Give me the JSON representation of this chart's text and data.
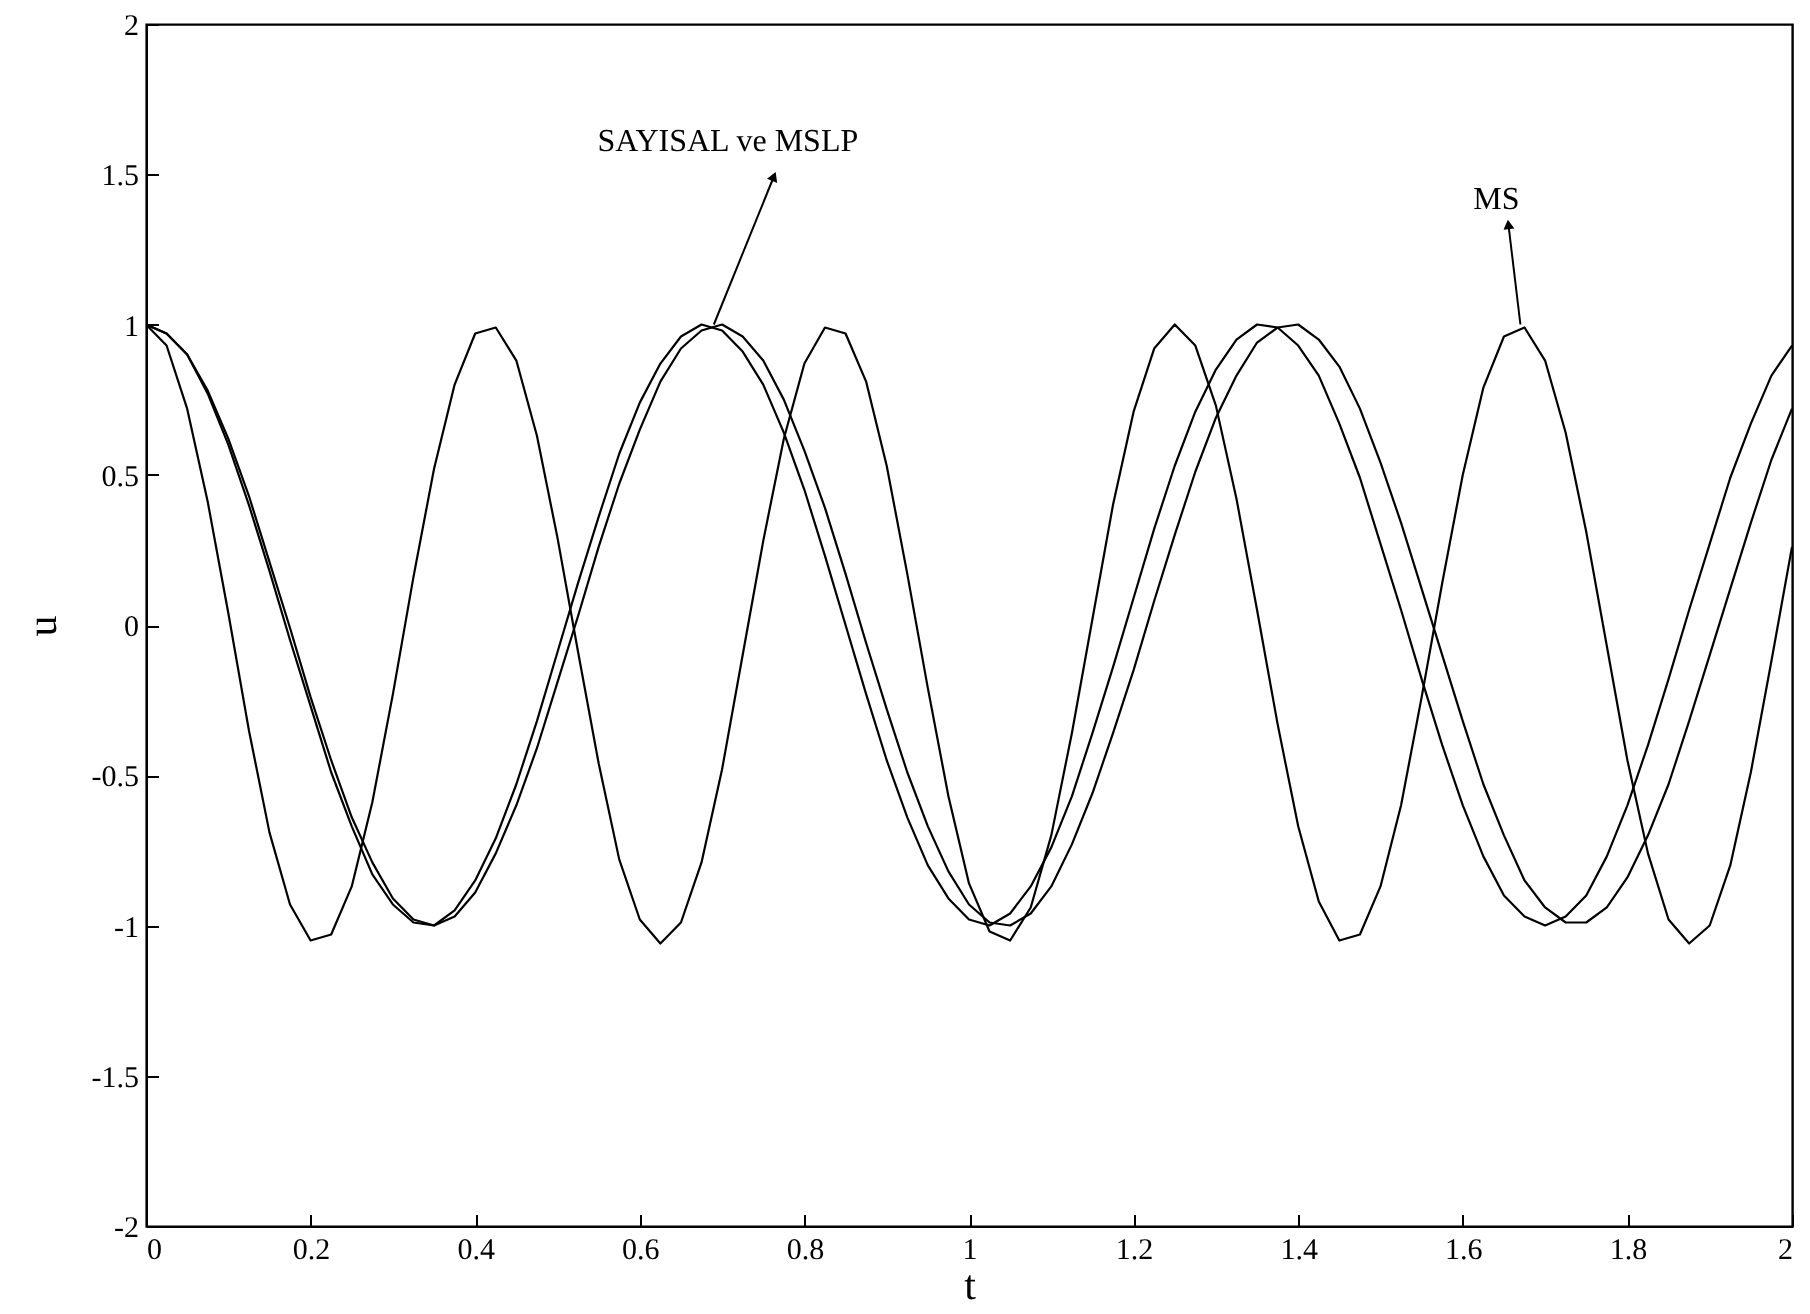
{
  "chart_data": {
    "type": "line",
    "xlabel": "t",
    "ylabel": "u",
    "xlim": [
      0,
      2
    ],
    "ylim": [
      -2,
      2
    ],
    "xticks": [
      0,
      0.2,
      0.4,
      0.6,
      0.8,
      1,
      1.2,
      1.4,
      1.6,
      1.8,
      2
    ],
    "yticks": [
      -2,
      -1.5,
      -1,
      -0.5,
      0,
      0.5,
      1,
      1.5,
      2
    ],
    "grid": false,
    "annotations": [
      {
        "text": "SAYISAL ve MSLP",
        "x": 0.69,
        "y": 1.0
      },
      {
        "text": "MS",
        "x": 1.67,
        "y": 1.0
      }
    ],
    "x": [
      0,
      0.025,
      0.05,
      0.075,
      0.1,
      0.125,
      0.15,
      0.175,
      0.2,
      0.225,
      0.25,
      0.275,
      0.3,
      0.325,
      0.35,
      0.375,
      0.4,
      0.425,
      0.45,
      0.475,
      0.5,
      0.525,
      0.55,
      0.575,
      0.6,
      0.625,
      0.65,
      0.675,
      0.7,
      0.725,
      0.75,
      0.775,
      0.8,
      0.825,
      0.85,
      0.875,
      0.9,
      0.925,
      0.95,
      0.975,
      1,
      1.025,
      1.05,
      1.075,
      1.1,
      1.125,
      1.15,
      1.175,
      1.2,
      1.225,
      1.25,
      1.275,
      1.3,
      1.325,
      1.35,
      1.375,
      1.4,
      1.425,
      1.45,
      1.475,
      1.5,
      1.525,
      1.55,
      1.575,
      1.6,
      1.625,
      1.65,
      1.675,
      1.7,
      1.725,
      1.75,
      1.775,
      1.8,
      1.825,
      1.85,
      1.875,
      1.9,
      1.925,
      1.95,
      1.975,
      2
    ],
    "series": [
      {
        "color": "#000000",
        "values": [
          1,
          0.93,
          0.72,
          0.41,
          0.04,
          -0.35,
          -0.69,
          -0.93,
          -1.05,
          -1.03,
          -0.87,
          -0.59,
          -0.23,
          0.16,
          0.52,
          0.8,
          0.97,
          0.99,
          0.88,
          0.63,
          0.29,
          -0.09,
          -0.46,
          -0.78,
          -0.98,
          -1.06,
          -0.99,
          -0.79,
          -0.48,
          -0.1,
          0.28,
          0.62,
          0.87,
          0.99,
          0.97,
          0.81,
          0.53,
          0.17,
          -0.21,
          -0.57,
          -0.86,
          -1.02,
          -1.05,
          -0.94,
          -0.7,
          -0.36,
          0.02,
          0.4,
          0.71,
          0.92,
          1,
          0.93,
          0.73,
          0.42,
          0.05,
          -0.33,
          -0.67,
          -0.92,
          -1.05,
          -1.03,
          -0.87,
          -0.6,
          -0.24,
          0.14,
          0.5,
          0.79,
          0.96,
          0.99,
          0.88,
          0.64,
          0.31,
          -0.07,
          -0.45,
          -0.76,
          -0.98,
          -1.06,
          -1,
          -0.8,
          -0.49,
          -0.12,
          0.26
        ]
      },
      {
        "color": "#000000",
        "values": [
          1,
          0.97,
          0.9,
          0.77,
          0.6,
          0.4,
          0.18,
          -0.05,
          -0.27,
          -0.49,
          -0.67,
          -0.83,
          -0.93,
          -0.99,
          -1,
          -0.95,
          -0.85,
          -0.71,
          -0.53,
          -0.32,
          -0.09,
          0.14,
          0.36,
          0.57,
          0.74,
          0.87,
          0.96,
          1,
          0.98,
          0.91,
          0.8,
          0.64,
          0.45,
          0.23,
          0,
          -0.23,
          -0.45,
          -0.64,
          -0.8,
          -0.91,
          -0.98,
          -1,
          -0.96,
          -0.87,
          -0.74,
          -0.57,
          -0.36,
          -0.14,
          0.09,
          0.32,
          0.53,
          0.71,
          0.85,
          0.95,
          1,
          0.99,
          0.93,
          0.83,
          0.67,
          0.49,
          0.27,
          0.05,
          -0.18,
          -0.4,
          -0.6,
          -0.77,
          -0.9,
          -0.97,
          -1,
          -0.97,
          -0.9,
          -0.77,
          -0.6,
          -0.4,
          -0.18,
          0.05,
          0.27,
          0.49,
          0.67,
          0.83,
          0.93
        ]
      },
      {
        "color": "#000000",
        "values": [
          1,
          0.97,
          0.9,
          0.78,
          0.62,
          0.43,
          0.21,
          -0.01,
          -0.24,
          -0.45,
          -0.64,
          -0.79,
          -0.91,
          -0.98,
          -1,
          -0.97,
          -0.89,
          -0.76,
          -0.6,
          -0.41,
          -0.19,
          0.03,
          0.26,
          0.47,
          0.65,
          0.81,
          0.92,
          0.98,
          1,
          0.96,
          0.88,
          0.75,
          0.58,
          0.39,
          0.17,
          -0.06,
          -0.28,
          -0.49,
          -0.67,
          -0.82,
          -0.93,
          -0.99,
          -1,
          -0.96,
          -0.87,
          -0.73,
          -0.56,
          -0.36,
          -0.15,
          0.08,
          0.3,
          0.51,
          0.69,
          0.83,
          0.94,
          0.99,
          1,
          0.95,
          0.86,
          0.72,
          0.54,
          0.34,
          0.12,
          -0.1,
          -0.32,
          -0.53,
          -0.7,
          -0.85,
          -0.94,
          -0.99,
          -0.99,
          -0.94,
          -0.84,
          -0.7,
          -0.53,
          -0.32,
          -0.1,
          0.12,
          0.34,
          0.55,
          0.72
        ]
      }
    ]
  }
}
